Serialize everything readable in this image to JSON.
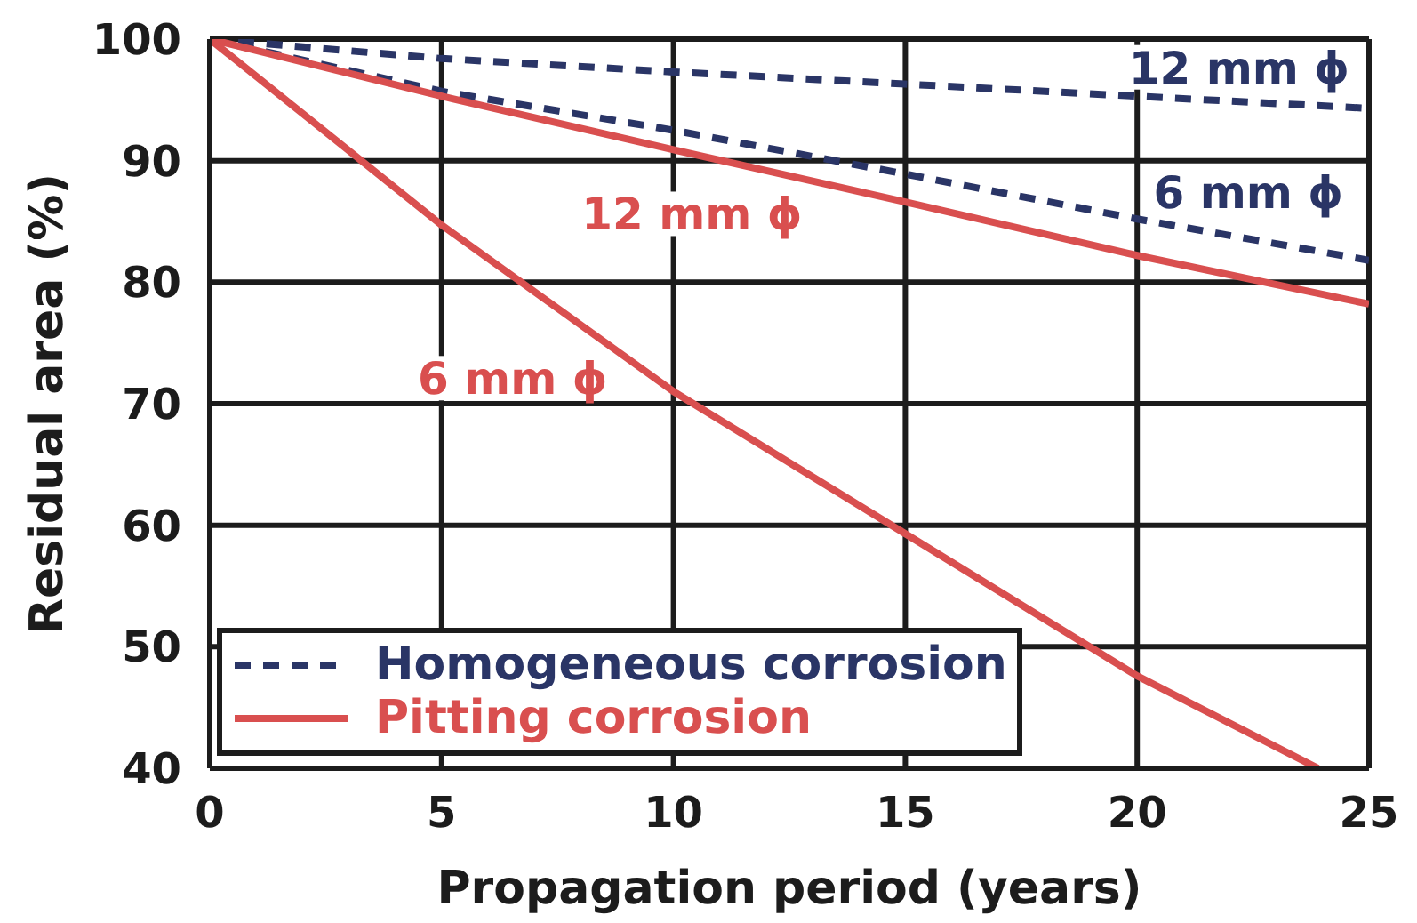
{
  "chart_data": {
    "type": "line",
    "xlabel": "Propagation period (years)",
    "ylabel": "Residual area (%)",
    "xlim": [
      0,
      25
    ],
    "xticks": [
      0,
      5,
      10,
      15,
      20,
      25
    ],
    "ylim": [
      40,
      100
    ],
    "yticks": [
      40,
      50,
      60,
      70,
      80,
      90,
      100
    ],
    "grid": true,
    "legend": "bottom left",
    "series": [
      {
        "name": "Homogeneous corrosion",
        "color": "#2a3566",
        "line_style": "dashed",
        "x": [
          0,
          5,
          10,
          15,
          20,
          25
        ],
        "values": [
          100,
          98.4,
          97.3,
          96.3,
          95.3,
          94.3
        ]
      },
      {
        "color": "#2a3566",
        "line_style": "dashed",
        "x": [
          0,
          5,
          10,
          15,
          20,
          25
        ],
        "values": [
          100,
          95.7,
          92.5,
          88.9,
          85.2,
          81.8
        ]
      },
      {
        "name": "Pitting corrosion",
        "color": "#d94f4f",
        "line_style": "solid",
        "x": [
          0,
          5,
          10,
          15,
          20,
          25
        ],
        "values": [
          100,
          95.3,
          90.9,
          86.6,
          82.2,
          78.2
        ]
      },
      {
        "color": "#d94f4f",
        "line_style": "solid",
        "x": [
          0,
          5,
          10,
          15,
          20,
          23.9
        ],
        "values": [
          100,
          84.7,
          71,
          59.3,
          47.6,
          40
        ]
      }
    ],
    "annotations": [
      {
        "text": "12 mm ϕ",
        "x": 22.2,
        "y": 94.9
      },
      {
        "text": "6 mm ϕ",
        "x": 22.4,
        "y": 83.6
      },
      {
        "text": "12 mm ϕ",
        "x": 10.4,
        "y": 90.6
      },
      {
        "text": "6 mm ϕ",
        "x": 9.6,
        "y": 72.1
      }
    ]
  }
}
